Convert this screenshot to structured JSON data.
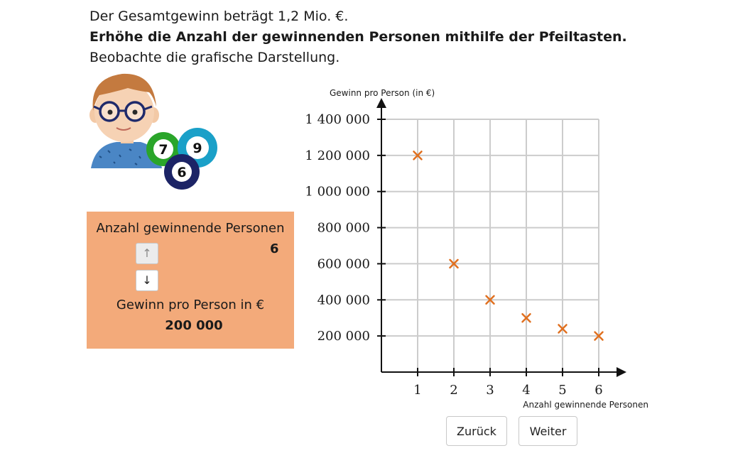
{
  "intro": {
    "line1": "Der Gesamtgewinn beträgt 1,2 Mio. €.",
    "line2": "Erhöhe die Anzahl der gewinnenden Personen mithilfe der Pfeiltasten.",
    "line3": "Beobachte die grafische Darstellung."
  },
  "illustration": {
    "balls": [
      {
        "number": "7",
        "color": "#2aa52a"
      },
      {
        "number": "9",
        "color": "#1aa0c8"
      },
      {
        "number": "6",
        "color": "#1c2466"
      }
    ]
  },
  "panel": {
    "count_label": "Anzahl gewinnende Personen",
    "count_value": "6",
    "up_label": "↑",
    "down_label": "↓",
    "gain_label": "Gewinn pro Person in €",
    "gain_value": "200 000"
  },
  "colors": {
    "panel": "#f3aa7a",
    "marker": "#e07020",
    "grid": "#cccccc"
  },
  "chart_data": {
    "type": "scatter",
    "title": "",
    "xlabel": "Anzahl gewinnende Personen",
    "ylabel": "Gewinn pro Person (in €)",
    "x": [
      1,
      2,
      3,
      4,
      5,
      6
    ],
    "y": [
      1200000,
      600000,
      400000,
      300000,
      240000,
      200000
    ],
    "x_ticks": [
      "1",
      "2",
      "3",
      "4",
      "5",
      "6"
    ],
    "y_ticks": [
      "200 000",
      "400 000",
      "600 000",
      "800 000",
      "1 000 000",
      "1 200 000",
      "1 400 000"
    ],
    "xlim": [
      0,
      6.7
    ],
    "ylim": [
      0,
      1400000
    ],
    "grid": true,
    "marker": "x"
  },
  "nav": {
    "back_label": "Zurück",
    "next_label": "Weiter"
  }
}
